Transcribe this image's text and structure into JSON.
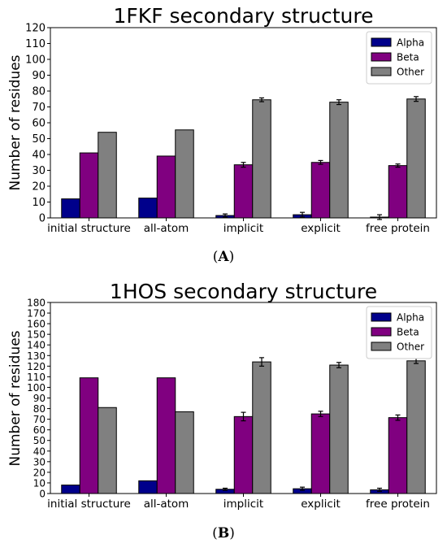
{
  "captions": {
    "a": "A",
    "b": "B"
  },
  "colors": {
    "alpha": "#00008b",
    "beta": "#800080",
    "other": "#808080"
  },
  "chart_data": [
    {
      "type": "bar",
      "title": "1FKF secondary structure",
      "xlabel": "",
      "ylabel": "Number of residues",
      "ylim": [
        0,
        120
      ],
      "yticks": [
        0,
        10,
        20,
        30,
        40,
        50,
        60,
        70,
        80,
        90,
        100,
        110,
        120
      ],
      "categories": [
        "initial structure",
        "all-atom",
        "implicit",
        "explicit",
        "free protein"
      ],
      "legend_position": "top-right",
      "series": [
        {
          "name": "Alpha",
          "values": [
            12,
            12.5,
            1.5,
            2,
            0.5
          ],
          "errors": [
            0,
            0,
            1,
            1.5,
            1.5
          ]
        },
        {
          "name": "Beta",
          "values": [
            41,
            39,
            33.5,
            35,
            33
          ],
          "errors": [
            0,
            0,
            1.5,
            1.2,
            1
          ]
        },
        {
          "name": "Other",
          "values": [
            54,
            55.5,
            74.5,
            73,
            75
          ],
          "errors": [
            0,
            0,
            1.2,
            1.5,
            1.5
          ]
        }
      ]
    },
    {
      "type": "bar",
      "title": "1HOS secondary structure",
      "xlabel": "",
      "ylabel": "Number of residues",
      "ylim": [
        0,
        180
      ],
      "yticks": [
        0,
        10,
        20,
        30,
        40,
        50,
        60,
        70,
        80,
        90,
        100,
        110,
        120,
        130,
        140,
        150,
        160,
        170,
        180
      ],
      "categories": [
        "initial structure",
        "all-atom",
        "implicit",
        "explicit",
        "free protein"
      ],
      "legend_position": "top-right",
      "series": [
        {
          "name": "Alpha",
          "values": [
            8,
            12,
            4,
            4.5,
            3.5
          ],
          "errors": [
            0,
            0,
            1,
            1.5,
            1.5
          ]
        },
        {
          "name": "Beta",
          "values": [
            109,
            109,
            72.5,
            75,
            71.5
          ],
          "errors": [
            0,
            0,
            4,
            2.5,
            2.5
          ]
        },
        {
          "name": "Other",
          "values": [
            81,
            77,
            124,
            121,
            125
          ],
          "errors": [
            0,
            0,
            4,
            2.5,
            2.5
          ]
        }
      ]
    }
  ]
}
